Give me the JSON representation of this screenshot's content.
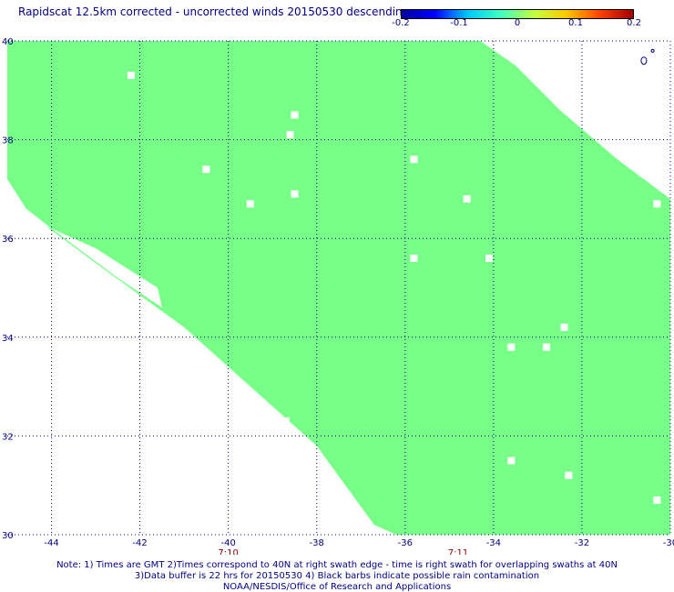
{
  "title": "Rapidscat 12.5km corrected - uncorrected winds 20150530 descending",
  "colors": {
    "swath": "#77ff88",
    "gap": "#ffffff",
    "grid": "#000080",
    "text": "#000080",
    "time_text": "#8b0000"
  },
  "colorbar": {
    "tick_labels": [
      "-0.2",
      "-0.1",
      "0",
      "0.1",
      "0.2"
    ],
    "stops": [
      "#0000a0",
      "#0000ff",
      "#00c8ff",
      "#40ffc0",
      "#c0ff40",
      "#ffc800",
      "#ff4000",
      "#a00000"
    ]
  },
  "chart_data": {
    "type": "heatmap",
    "title": "Rapidscat 12.5km corrected - uncorrected winds 20150530 descending",
    "xlabel": "",
    "ylabel": "",
    "xlim": [
      -45,
      -30
    ],
    "ylim": [
      30,
      40
    ],
    "xticks": [
      -44,
      -42,
      -40,
      -38,
      -36,
      -34,
      -32,
      -30
    ],
    "yticks": [
      30,
      32,
      34,
      36,
      38,
      40
    ],
    "xtick_labels": [
      "-44",
      "-42",
      "-40",
      "-38",
      "-36",
      "-34",
      "-32",
      "-30"
    ],
    "ytick_labels": [
      "30",
      "32",
      "34",
      "36",
      "38",
      "40"
    ],
    "grid": true,
    "value_fill": 0,
    "swath_west_edge": [
      [
        -45.0,
        37.2
      ],
      [
        -44.5,
        36.5
      ],
      [
        -43.0,
        35.5
      ],
      [
        -41.0,
        34.2
      ],
      [
        -39.5,
        33.0
      ],
      [
        -38.0,
        31.8
      ],
      [
        -36.7,
        30.2
      ],
      [
        -36.2,
        30.0
      ]
    ],
    "swath_east_edge": [
      [
        -34.3,
        40.0
      ],
      [
        -33.5,
        39.5
      ],
      [
        -32.5,
        38.6
      ],
      [
        -31.2,
        37.6
      ],
      [
        -30.0,
        36.8
      ]
    ],
    "missing_cells": [
      [
        -42.2,
        39.3
      ],
      [
        -38.5,
        38.5
      ],
      [
        -38.6,
        38.1
      ],
      [
        -40.5,
        37.4
      ],
      [
        -38.5,
        36.9
      ],
      [
        -39.5,
        36.7
      ],
      [
        -35.8,
        37.6
      ],
      [
        -34.6,
        36.8
      ],
      [
        -30.3,
        36.7
      ],
      [
        -35.8,
        35.6
      ],
      [
        -34.1,
        35.6
      ],
      [
        -32.4,
        34.2
      ],
      [
        -33.6,
        33.8
      ],
      [
        -32.8,
        33.8
      ],
      [
        -38.7,
        32.3
      ],
      [
        -33.6,
        31.5
      ],
      [
        -32.3,
        31.2
      ],
      [
        -30.3,
        30.7
      ]
    ],
    "time_labels": [
      {
        "text": "7:10",
        "lon": -40.0
      },
      {
        "text": "7:11",
        "lon": -34.8
      }
    ]
  },
  "notes": [
    "Note: 1) Times are GMT 2)Times correspond to 40N at right swath edge - time is right swath for overlapping swaths at 40N",
    "3)Data buffer is 22 hrs for 20150530 4) Black barbs indicate possible rain contamination",
    "NOAA/NESDIS/Office of Research and Applications"
  ]
}
